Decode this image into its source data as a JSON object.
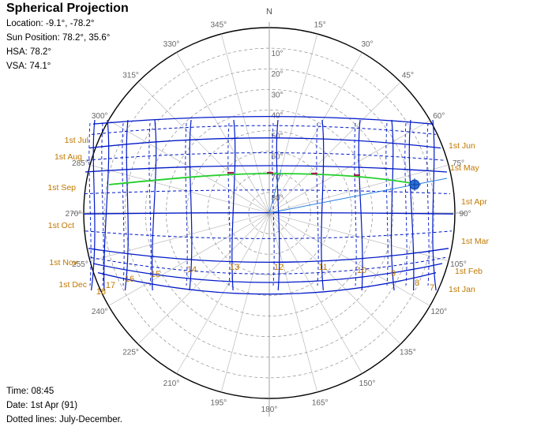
{
  "title": "Spherical Projection",
  "info": {
    "location": "Location: -9.1°, -78.2°",
    "sun_position": "Sun Position: 78.2°, 35.6°",
    "hsa": "HSA: 78.2°",
    "vsa": "VSA: 74.1°"
  },
  "footer": {
    "time": "Time: 08:45",
    "date": "Date: 1st Apr (91)",
    "note": "Dotted lines: July-December."
  },
  "compass": {
    "north_label": "N",
    "azimuth_labels": [
      "15°",
      "30°",
      "45°",
      "60°",
      "75°",
      "90°",
      "105°",
      "120°",
      "135°",
      "150°",
      "165°",
      "180°",
      "195°",
      "210°",
      "225°",
      "240°",
      "255°",
      "270°",
      "285°",
      "300°",
      "315°",
      "330°",
      "345°"
    ],
    "altitude_labels": [
      "10°",
      "20°",
      "30°",
      "40°",
      "50°",
      "60°",
      "70°",
      "80°"
    ]
  },
  "month_labels_right": [
    "1st Jun",
    "1st May",
    "1st Apr",
    "1st Mar",
    "1st Feb",
    "1st Jan"
  ],
  "month_labels_left": [
    "1st Jul",
    "1st Aug",
    "1st Sep",
    "1st Oct",
    "1st Nov",
    "1st Dec"
  ],
  "hour_labels": [
    "7",
    "8",
    "9",
    "10",
    "11",
    "12",
    "13",
    "14",
    "15",
    "16",
    "17",
    "18"
  ],
  "colors": {
    "sunpath": "#0018c8",
    "month_label": "#c07800",
    "today_path": "#22d02a",
    "sun_marker": "#2a6fd6",
    "grid": "#909090"
  }
}
